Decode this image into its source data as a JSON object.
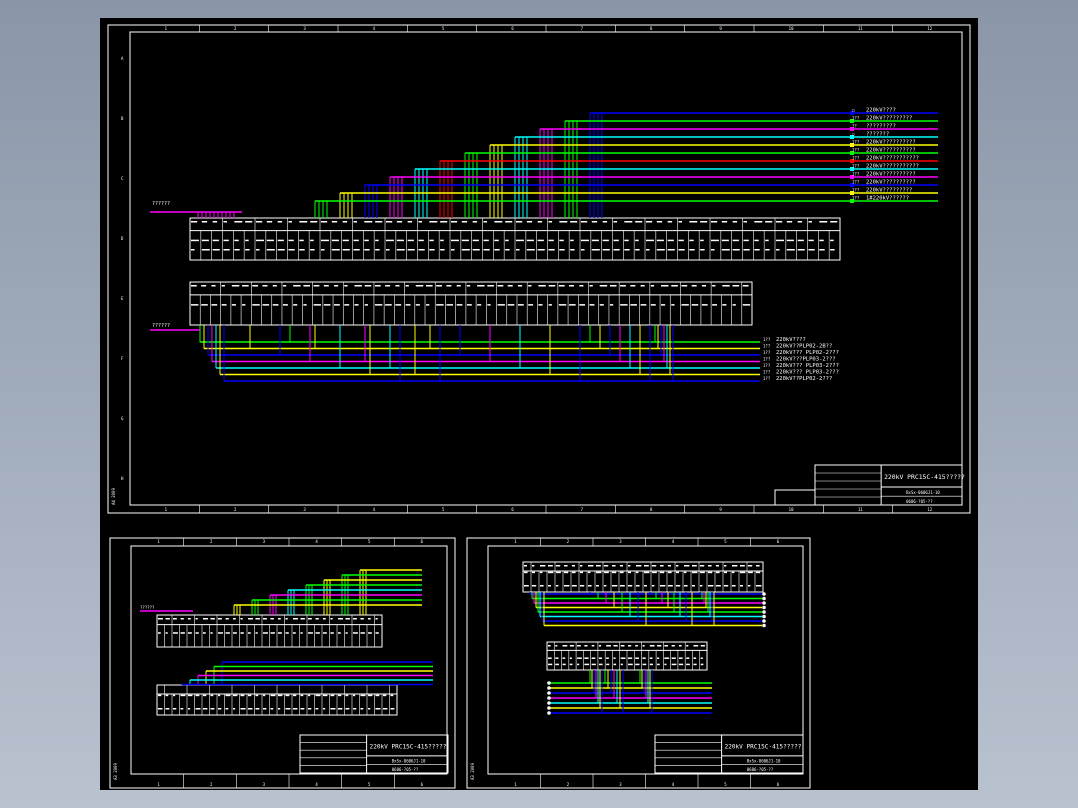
{
  "colors": {
    "background": "#000000",
    "frame": "#ffffff",
    "blue": "#0000ff",
    "green": "#00ff00",
    "magenta": "#ff00ff",
    "cyan": "#00ffff",
    "yellow": "#ffff00",
    "red": "#ff0000"
  },
  "main_sheet": {
    "column_numbers": [
      "1",
      "2",
      "3",
      "4",
      "5",
      "6",
      "7",
      "8",
      "9",
      "10",
      "11",
      "12"
    ],
    "row_letters": [
      "A",
      "B",
      "C",
      "D",
      "E",
      "F",
      "G",
      "H"
    ],
    "left_label_top": "??????",
    "left_label_bottom": "??????",
    "side_text": "A4 2009",
    "upper_buses": [
      {
        "color": "blue",
        "tag": "□",
        "label": "220kV????"
      },
      {
        "color": "green",
        "tag": "1??",
        "label": "220kV?????????"
      },
      {
        "color": "magenta",
        "tag": "??",
        "label": "?????????"
      },
      {
        "color": "cyan",
        "tag": "□",
        "label": "???????"
      },
      {
        "color": "yellow",
        "tag": "1??",
        "label": "220kV??????????"
      },
      {
        "color": "green",
        "tag": "1??",
        "label": "220kV??????????"
      },
      {
        "color": "red",
        "tag": "1??",
        "label": "220kV???????????"
      },
      {
        "color": "cyan",
        "tag": "1??",
        "label": "220kV???????????"
      },
      {
        "color": "magenta",
        "tag": "1??",
        "label": "220kV??????????"
      },
      {
        "color": "blue",
        "tag": "1??",
        "label": "220kV??????????"
      },
      {
        "color": "yellow",
        "tag": "1??",
        "label": "220kV?????????"
      },
      {
        "color": "green",
        "tag": "1??",
        "label": "1#220kV??????"
      }
    ],
    "lower_buses": [
      {
        "color": "green",
        "tag": "1??",
        "label": "220kV????"
      },
      {
        "color": "yellow",
        "tag": "1??",
        "label": "220kV??PLP02-2B??"
      },
      {
        "color": "blue",
        "tag": "1??",
        "label": "220kV??? PLP02-2???"
      },
      {
        "color": "magenta",
        "tag": "1??",
        "label": "220kV???PLP03-2???"
      },
      {
        "color": "cyan",
        "tag": "1??",
        "label": "220kV??? PLP03-2???"
      },
      {
        "color": "yellow",
        "tag": "1??",
        "label": "220kV??? PLP03-2???"
      },
      {
        "color": "blue",
        "tag": "1??",
        "label": "220kV??PLP02-2???"
      }
    ],
    "title_block": {
      "title": "220kV PRC15C-415?????",
      "drawing_no": "BxSx-0606J1-10",
      "code": "0606-?05-??",
      "rows": [
        "????",
        "????",
        "??",
        "?"
      ]
    }
  },
  "sheet_left": {
    "column_numbers": [
      "1",
      "2",
      "3",
      "4",
      "5",
      "6"
    ],
    "side_text": "A3 2009",
    "left_label": "??????",
    "title": "220kV PRC15C-415?????",
    "drawing_no": "BxSx-0606J1-10",
    "code": "0606-?05-??"
  },
  "sheet_right": {
    "column_numbers": [
      "1",
      "2",
      "3",
      "4",
      "5",
      "6"
    ],
    "side_text": "A3 2009",
    "title": "220kV PRC15C-415?????",
    "drawing_no": "BxSx-0606J1-10",
    "code": "0606-?05-??"
  }
}
